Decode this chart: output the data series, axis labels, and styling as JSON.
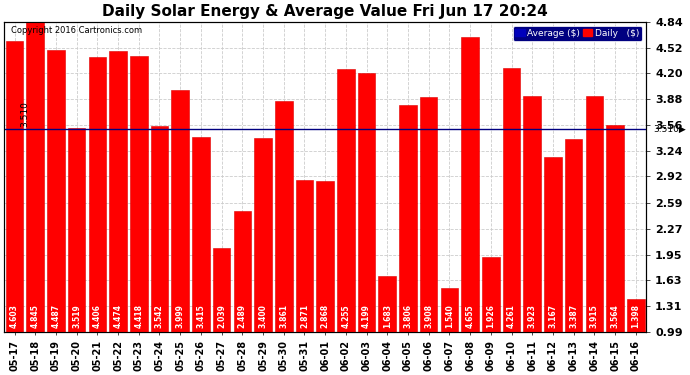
{
  "title": "Daily Solar Energy & Average Value Fri Jun 17 20:24",
  "copyright": "Copyright 2016 Cartronics.com",
  "categories": [
    "05-17",
    "05-18",
    "05-19",
    "05-20",
    "05-21",
    "05-22",
    "05-23",
    "05-24",
    "05-25",
    "05-26",
    "05-27",
    "05-28",
    "05-29",
    "05-30",
    "05-31",
    "06-01",
    "06-02",
    "06-03",
    "06-04",
    "06-05",
    "06-06",
    "06-07",
    "06-08",
    "06-09",
    "06-10",
    "06-11",
    "06-12",
    "06-13",
    "06-14",
    "06-15",
    "06-16"
  ],
  "values": [
    4.603,
    4.845,
    4.487,
    3.519,
    4.406,
    4.474,
    4.418,
    3.542,
    3.999,
    3.415,
    2.039,
    2.489,
    3.4,
    3.861,
    2.871,
    2.868,
    4.255,
    4.199,
    1.683,
    3.806,
    3.908,
    1.54,
    4.655,
    1.926,
    4.261,
    3.923,
    3.167,
    3.387,
    3.915,
    3.564,
    1.398
  ],
  "average_line": 3.51,
  "average_label": "3.510",
  "bar_color": "#ff0000",
  "bar_edge_color": "#dd0000",
  "background_color": "#ffffff",
  "plot_bg_color": "#ffffff",
  "grid_color": "#cccccc",
  "average_line_color": "#000080",
  "ylim_min": 0.99,
  "ylim_max": 4.84,
  "yticks": [
    0.99,
    1.31,
    1.63,
    1.95,
    2.27,
    2.59,
    2.92,
    3.24,
    3.56,
    3.88,
    4.2,
    4.52,
    4.84
  ],
  "legend_bg_color": "#000080",
  "legend_avg_color": "#0000ff",
  "legend_daily_color": "#ff0000",
  "title_fontsize": 11,
  "tick_fontsize": 8,
  "value_fontsize": 5.5,
  "left_avg_label_color": "#000000",
  "right_avg_label_color": "#000000"
}
